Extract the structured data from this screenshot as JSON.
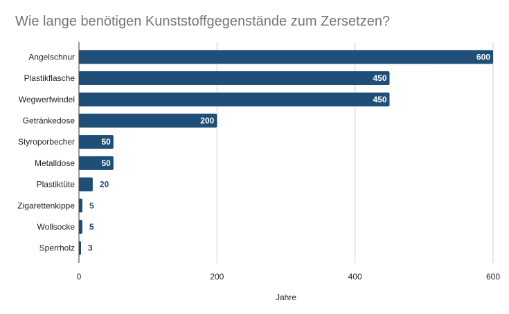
{
  "chart_data": {
    "type": "bar",
    "orientation": "horizontal",
    "title": "Wie lange benötigen Kunststoffgegenstände zum Zersetzen?",
    "xlabel": "Jahre",
    "ylabel": "",
    "categories": [
      "Angelschnur",
      "Plastikflasche",
      "Wegwerfwindel",
      "Getränkedose",
      "Styroporbecher",
      "Metalldose",
      "Plastiktüte",
      "Zigarettenkippe",
      "Wollsocke",
      "Sperrholz"
    ],
    "values": [
      600,
      450,
      450,
      200,
      50,
      50,
      20,
      5,
      5,
      3
    ],
    "xlim": [
      0,
      600
    ],
    "xticks": [
      0,
      200,
      400,
      600
    ],
    "grid": true,
    "data_labels": true,
    "colors": {
      "bar": "#1f4e79",
      "grid": "#cccccc",
      "title": "#757575"
    }
  }
}
